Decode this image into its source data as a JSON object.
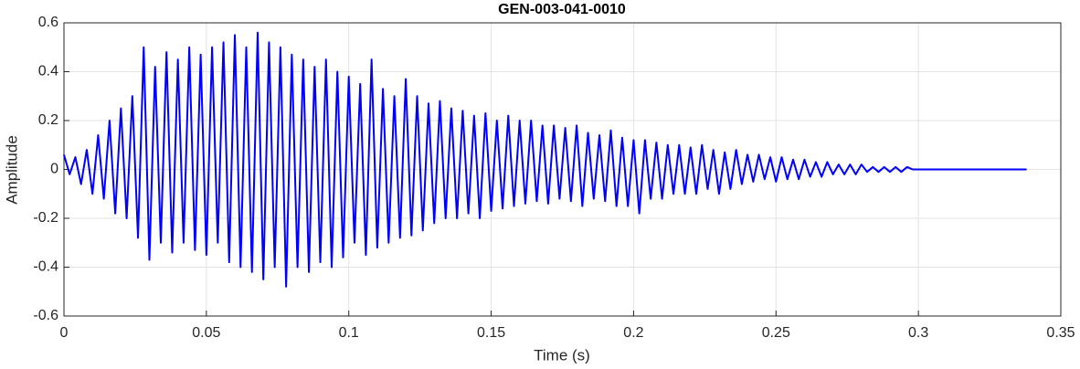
{
  "chart_data": {
    "type": "line",
    "title": "GEN-003-041-0010",
    "xlabel": "Time (s)",
    "ylabel": "Amplitude",
    "x": [
      0,
      0.002,
      0.004,
      0.006,
      0.008,
      0.01,
      0.012,
      0.014,
      0.016,
      0.018,
      0.02,
      0.022,
      0.024,
      0.026,
      0.028,
      0.03,
      0.032,
      0.034,
      0.036,
      0.038,
      0.04,
      0.042,
      0.044,
      0.046,
      0.048,
      0.05,
      0.052,
      0.054,
      0.056,
      0.058,
      0.06,
      0.062,
      0.064,
      0.066,
      0.068,
      0.07,
      0.072,
      0.074,
      0.076,
      0.078,
      0.08,
      0.082,
      0.084,
      0.086,
      0.088,
      0.09,
      0.092,
      0.094,
      0.096,
      0.098,
      0.1,
      0.102,
      0.104,
      0.106,
      0.108,
      0.11,
      0.112,
      0.114,
      0.116,
      0.118,
      0.12,
      0.122,
      0.124,
      0.126,
      0.128,
      0.13,
      0.132,
      0.134,
      0.136,
      0.138,
      0.14,
      0.142,
      0.144,
      0.146,
      0.148,
      0.15,
      0.152,
      0.154,
      0.156,
      0.158,
      0.16,
      0.162,
      0.164,
      0.166,
      0.168,
      0.17,
      0.172,
      0.174,
      0.176,
      0.178,
      0.18,
      0.182,
      0.184,
      0.186,
      0.188,
      0.19,
      0.192,
      0.194,
      0.196,
      0.198,
      0.2,
      0.202,
      0.204,
      0.206,
      0.208,
      0.21,
      0.212,
      0.214,
      0.216,
      0.218,
      0.22,
      0.222,
      0.224,
      0.226,
      0.228,
      0.23,
      0.232,
      0.234,
      0.236,
      0.238,
      0.24,
      0.242,
      0.244,
      0.246,
      0.248,
      0.25,
      0.252,
      0.254,
      0.256,
      0.258,
      0.26,
      0.262,
      0.264,
      0.266,
      0.268,
      0.27,
      0.272,
      0.274,
      0.276,
      0.278,
      0.28,
      0.282,
      0.284,
      0.286,
      0.288,
      0.29,
      0.292,
      0.294,
      0.296,
      0.298,
      0.3,
      0.302,
      0.304,
      0.306,
      0.308,
      0.31,
      0.312,
      0.314,
      0.316,
      0.318,
      0.32,
      0.322,
      0.324,
      0.326,
      0.328,
      0.33,
      0.332,
      0.334,
      0.336,
      0.338
    ],
    "series": [
      {
        "color": "#0000ff",
        "values": [
          0.06,
          -0.02,
          0.05,
          -0.06,
          0.08,
          -0.1,
          0.14,
          -0.12,
          0.2,
          -0.18,
          0.25,
          -0.2,
          0.3,
          -0.28,
          0.5,
          -0.37,
          0.42,
          -0.3,
          0.48,
          -0.34,
          0.45,
          -0.3,
          0.5,
          -0.33,
          0.47,
          -0.35,
          0.5,
          -0.3,
          0.52,
          -0.38,
          0.55,
          -0.4,
          0.5,
          -0.42,
          0.56,
          -0.45,
          0.52,
          -0.4,
          0.5,
          -0.48,
          0.47,
          -0.4,
          0.45,
          -0.42,
          0.42,
          -0.38,
          0.45,
          -0.4,
          0.4,
          -0.36,
          0.38,
          -0.3,
          0.35,
          -0.35,
          0.45,
          -0.32,
          0.33,
          -0.3,
          0.3,
          -0.28,
          0.37,
          -0.27,
          0.3,
          -0.25,
          0.27,
          -0.22,
          0.28,
          -0.2,
          0.25,
          -0.2,
          0.24,
          -0.18,
          0.22,
          -0.2,
          0.23,
          -0.17,
          0.2,
          -0.16,
          0.22,
          -0.15,
          0.2,
          -0.14,
          0.2,
          -0.13,
          0.18,
          -0.14,
          0.18,
          -0.12,
          0.17,
          -0.13,
          0.18,
          -0.15,
          0.15,
          -0.12,
          0.14,
          -0.13,
          0.16,
          -0.15,
          0.13,
          -0.15,
          0.12,
          -0.18,
          0.12,
          -0.12,
          0.11,
          -0.12,
          0.1,
          -0.1,
          0.1,
          -0.1,
          0.09,
          -0.1,
          0.1,
          -0.08,
          0.08,
          -0.1,
          0.07,
          -0.08,
          0.08,
          -0.06,
          0.06,
          -0.05,
          0.06,
          -0.04,
          0.05,
          -0.05,
          0.05,
          -0.04,
          0.04,
          -0.04,
          0.04,
          -0.03,
          0.03,
          -0.03,
          0.03,
          -0.02,
          0.02,
          -0.02,
          0.02,
          -0.02,
          0.02,
          -0.01,
          0.01,
          -0.01,
          0.01,
          -0.01,
          0.01,
          -0.01,
          0.01,
          0,
          0,
          0,
          0,
          0,
          0,
          0,
          0,
          0,
          0,
          0,
          0,
          0,
          0,
          0,
          0,
          0,
          0,
          0,
          0,
          0
        ]
      }
    ],
    "xlim": [
      0,
      0.35
    ],
    "xticks": [
      0,
      0.05,
      0.1,
      0.15,
      0.2,
      0.25,
      0.3,
      0.35
    ],
    "ylim": [
      -0.6,
      0.6
    ],
    "yticks": [
      -0.6,
      -0.4,
      -0.2,
      0,
      0.2,
      0.4,
      0.6
    ],
    "grid": true
  }
}
